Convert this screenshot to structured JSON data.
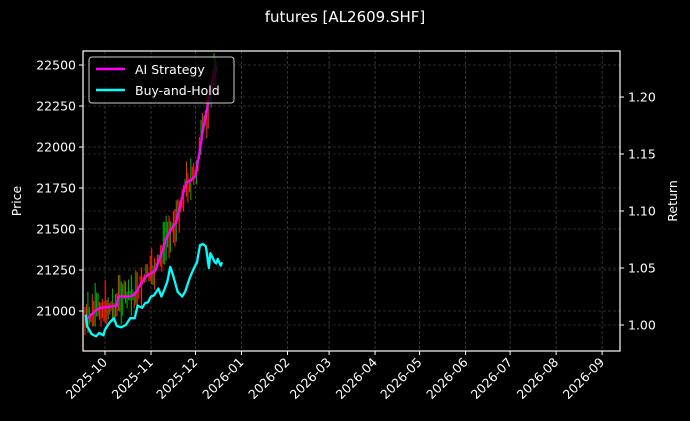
{
  "chart_data": {
    "type": "line",
    "title": "futures [AL2609.SHF]",
    "xlabel": "",
    "ylabel": "Price",
    "y2label": "Return",
    "x_ticks": [
      "2025-10",
      "2025-11",
      "2025-12",
      "2026-01",
      "2026-02",
      "2026-03",
      "2026-04",
      "2026-05",
      "2026-06",
      "2026-07",
      "2026-08",
      "2026-09"
    ],
    "y_ticks": [
      21000,
      21250,
      21500,
      21750,
      22000,
      22250,
      22500
    ],
    "y2_ticks": [
      "1.00",
      "1.05",
      "1.10",
      "1.15",
      "1.20"
    ],
    "ylim": [
      20780,
      22590
    ],
    "y2lim": [
      0.977,
      1.244
    ],
    "grid": true,
    "legend_position": "upper left",
    "legend": [
      "AI Strategy",
      "Buy-and-Hold"
    ],
    "series": [
      {
        "name": "AI Strategy",
        "axis": "right",
        "color": "#ff00ff",
        "x": [
          "2025-09-18",
          "2025-09-21",
          "2025-09-25",
          "2025-09-28",
          "2025-10-04",
          "2025-10-09",
          "2025-10-10",
          "2025-10-14",
          "2025-10-18",
          "2025-10-21",
          "2025-10-23",
          "2025-10-26",
          "2025-10-29",
          "2025-11-01",
          "2025-11-04",
          "2025-11-06",
          "2025-11-09",
          "2025-11-11",
          "2025-11-14",
          "2025-11-18",
          "2025-11-20",
          "2025-11-23",
          "2025-11-25",
          "2025-11-28",
          "2025-12-01",
          "2025-12-04",
          "2025-12-06",
          "2025-12-08",
          "2025-12-10",
          "2025-12-13",
          "2025-12-15"
        ],
        "values": [
          1.004,
          1.008,
          1.013,
          1.015,
          1.016,
          1.017,
          1.025,
          1.025,
          1.025,
          1.027,
          1.031,
          1.038,
          1.043,
          1.045,
          1.048,
          1.055,
          1.066,
          1.075,
          1.083,
          1.09,
          1.101,
          1.117,
          1.125,
          1.127,
          1.131,
          1.154,
          1.171,
          1.184,
          1.197,
          1.215,
          1.227
        ]
      },
      {
        "name": "Buy-and-Hold",
        "axis": "right",
        "color": "#00ffff",
        "x": [
          "2025-09-18",
          "2025-09-19",
          "2025-09-22",
          "2025-09-25",
          "2025-09-27",
          "2025-09-30",
          "2025-10-01",
          "2025-10-04",
          "2025-10-07",
          "2025-10-09",
          "2025-10-12",
          "2025-10-15",
          "2025-10-18",
          "2025-10-21",
          "2025-10-23",
          "2025-10-26",
          "2025-10-28",
          "2025-10-30",
          "2025-11-01",
          "2025-11-03",
          "2025-11-06",
          "2025-11-08",
          "2025-11-10",
          "2025-11-12",
          "2025-11-14",
          "2025-11-16",
          "2025-11-19",
          "2025-11-22",
          "2025-11-24",
          "2025-11-27",
          "2025-11-30",
          "2025-12-02",
          "2025-12-04",
          "2025-12-06",
          "2025-12-08",
          "2025-12-10",
          "2025-12-11",
          "2025-12-14",
          "2025-12-15",
          "2025-12-16",
          "2025-12-18",
          "2025-12-19"
        ],
        "values": [
          1.009,
          0.999,
          0.992,
          0.99,
          0.993,
          0.991,
          0.996,
          1.002,
          1.006,
          0.999,
          0.998,
          1.0,
          1.006,
          1.006,
          1.017,
          1.015,
          1.019,
          1.02,
          1.025,
          1.026,
          1.032,
          1.025,
          1.031,
          1.038,
          1.051,
          1.043,
          1.029,
          1.025,
          1.029,
          1.041,
          1.05,
          1.055,
          1.07,
          1.071,
          1.069,
          1.05,
          1.063,
          1.055,
          1.054,
          1.058,
          1.052,
          1.055
        ]
      }
    ],
    "candlesticks": {
      "axis": "left",
      "up_color": "#00aa00",
      "down_color": "#ff2200",
      "note": "daily OHLC candles, prices approx. 20800-22500, Sep 2025 to mid Dec 2025"
    }
  }
}
